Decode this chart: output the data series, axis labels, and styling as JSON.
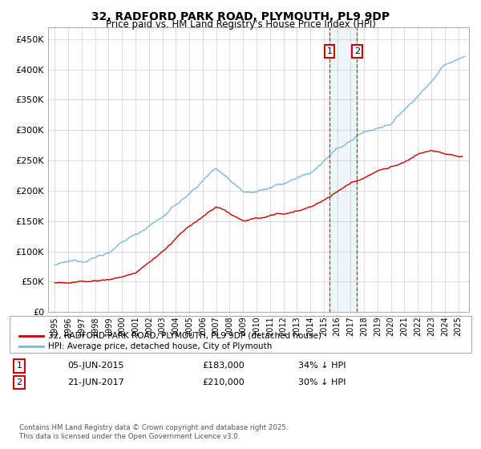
{
  "title": "32, RADFORD PARK ROAD, PLYMOUTH, PL9 9DP",
  "subtitle": "Price paid vs. HM Land Registry's House Price Index (HPI)",
  "ylabel_ticks": [
    "£0",
    "£50K",
    "£100K",
    "£150K",
    "£200K",
    "£250K",
    "£300K",
    "£350K",
    "£400K",
    "£450K"
  ],
  "ylim": [
    0,
    470000
  ],
  "xlim_start": 1994.5,
  "xlim_end": 2025.8,
  "hpi_color": "#7ab8d9",
  "price_color": "#cc0000",
  "purchase1_date": "05-JUN-2015",
  "purchase1_price": 183000,
  "purchase1_pct": "34% ↓ HPI",
  "purchase1_year": 2015.43,
  "purchase2_date": "21-JUN-2017",
  "purchase2_price": 210000,
  "purchase2_pct": "30% ↓ HPI",
  "purchase2_year": 2017.47,
  "legend_label1": "32, RADFORD PARK ROAD, PLYMOUTH, PL9 9DP (detached house)",
  "legend_label2": "HPI: Average price, detached house, City of Plymouth",
  "footnote": "Contains HM Land Registry data © Crown copyright and database right 2025.\nThis data is licensed under the Open Government Licence v3.0.",
  "background_color": "#ffffff",
  "grid_color": "#d0d0d0",
  "hpi_base_points_x": [
    1995,
    1997,
    1999,
    2001,
    2003,
    2005,
    2007,
    2009,
    2010,
    2012,
    2014,
    2016,
    2018,
    2020,
    2022,
    2024,
    2025.5
  ],
  "hpi_base_points_y": [
    78000,
    82000,
    100000,
    128000,
    158000,
    195000,
    240000,
    205000,
    208000,
    218000,
    235000,
    270000,
    300000,
    315000,
    360000,
    410000,
    425000
  ],
  "price_base_points_x": [
    1995,
    1997,
    1999,
    2001,
    2003,
    2005,
    2007,
    2009,
    2011,
    2013,
    2015,
    2017,
    2019,
    2021,
    2023,
    2025.3
  ],
  "price_base_points_y": [
    48000,
    50000,
    54000,
    65000,
    100000,
    140000,
    170000,
    148000,
    155000,
    162000,
    183000,
    210000,
    235000,
    248000,
    268000,
    263000
  ]
}
